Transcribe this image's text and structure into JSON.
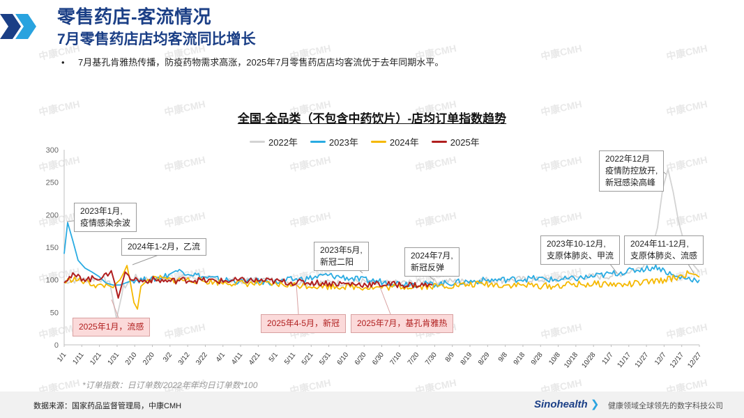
{
  "header": {
    "title": "零售药店-客流情况",
    "subtitle": "7月零售药店店均客流同比增长",
    "bullet": "7月基孔肯雅热传播，防疫药物需求高涨，2025年7月零售药店店均客流优于去年同期水平。",
    "bullet_marker": "•"
  },
  "watermark_text": "中康CMH",
  "colors": {
    "brand": "#1b3f86",
    "chev1": "#1b3f86",
    "chev2": "#29a3df",
    "y2022": "#d3d3d3",
    "y2023": "#29abe2",
    "y2024": "#f5b800",
    "y2025": "#b01e1e"
  },
  "chart_data": {
    "type": "line",
    "title": "全国-全品类（不包含中药饮片）-店均订单指数趋势",
    "ylim": [
      0,
      300
    ],
    "yticks": [
      "0",
      "50",
      "100",
      "150",
      "200",
      "250",
      "300"
    ],
    "xticks": [
      "1/1",
      "1/11",
      "1/21",
      "1/31",
      "2/10",
      "2/20",
      "3/2",
      "3/12",
      "3/22",
      "4/1",
      "4/11",
      "4/21",
      "5/1",
      "5/11",
      "5/21",
      "5/31",
      "6/10",
      "6/20",
      "6/30",
      "7/10",
      "7/20",
      "7/30",
      "8/9",
      "8/19",
      "8/29",
      "9/8",
      "9/18",
      "9/28",
      "10/8",
      "10/18",
      "10/28",
      "11/7",
      "11/17",
      "11/27",
      "12/7",
      "12/17",
      "12/27"
    ],
    "x_day_range": [
      0,
      364
    ],
    "series": [
      {
        "name": "2022年",
        "key": "y2022",
        "points": [
          [
            0,
            98
          ],
          [
            10,
            100
          ],
          [
            20,
            102
          ],
          [
            26,
            98
          ],
          [
            30,
            40
          ],
          [
            34,
            88
          ],
          [
            40,
            104
          ],
          [
            50,
            100
          ],
          [
            60,
            102
          ],
          [
            70,
            104
          ],
          [
            80,
            102
          ],
          [
            90,
            100
          ],
          [
            100,
            98
          ],
          [
            110,
            100
          ],
          [
            120,
            100
          ],
          [
            130,
            96
          ],
          [
            140,
            95
          ],
          [
            150,
            96
          ],
          [
            160,
            95
          ],
          [
            170,
            98
          ],
          [
            180,
            94
          ],
          [
            190,
            95
          ],
          [
            200,
            96
          ],
          [
            210,
            97
          ],
          [
            220,
            98
          ],
          [
            230,
            97
          ],
          [
            240,
            100
          ],
          [
            250,
            99
          ],
          [
            260,
            101
          ],
          [
            270,
            100
          ],
          [
            280,
            100
          ],
          [
            290,
            103
          ],
          [
            300,
            105
          ],
          [
            310,
            105
          ],
          [
            320,
            110
          ],
          [
            330,
            118
          ],
          [
            336,
            140
          ],
          [
            340,
            180
          ],
          [
            343,
            240
          ],
          [
            346,
            270
          ],
          [
            349,
            235
          ],
          [
            352,
            190
          ],
          [
            356,
            150
          ],
          [
            360,
            125
          ],
          [
            364,
            112
          ]
        ]
      },
      {
        "name": "2023年",
        "key": "y2023",
        "points": [
          [
            0,
            140
          ],
          [
            2,
            188
          ],
          [
            5,
            160
          ],
          [
            8,
            130
          ],
          [
            12,
            118
          ],
          [
            16,
            112
          ],
          [
            20,
            105
          ],
          [
            24,
            95
          ],
          [
            28,
            92
          ],
          [
            32,
            92
          ],
          [
            36,
            96
          ],
          [
            40,
            100
          ],
          [
            50,
            100
          ],
          [
            60,
            108
          ],
          [
            64,
            114
          ],
          [
            70,
            112
          ],
          [
            80,
            104
          ],
          [
            90,
            100
          ],
          [
            100,
            98
          ],
          [
            110,
            98
          ],
          [
            120,
            96
          ],
          [
            130,
            100
          ],
          [
            140,
            102
          ],
          [
            150,
            107
          ],
          [
            160,
            104
          ],
          [
            170,
            100
          ],
          [
            180,
            98
          ],
          [
            190,
            95
          ],
          [
            200,
            94
          ],
          [
            210,
            93
          ],
          [
            220,
            95
          ],
          [
            230,
            97
          ],
          [
            240,
            99
          ],
          [
            250,
            100
          ],
          [
            260,
            101
          ],
          [
            270,
            102
          ],
          [
            280,
            100
          ],
          [
            290,
            101
          ],
          [
            300,
            104
          ],
          [
            310,
            108
          ],
          [
            320,
            112
          ],
          [
            330,
            116
          ],
          [
            340,
            120
          ],
          [
            350,
            105
          ],
          [
            358,
            102
          ],
          [
            364,
            100
          ]
        ]
      },
      {
        "name": "2024年",
        "key": "y2024",
        "points": [
          [
            0,
            96
          ],
          [
            5,
            102
          ],
          [
            10,
            98
          ],
          [
            15,
            95
          ],
          [
            20,
            90
          ],
          [
            25,
            92
          ],
          [
            28,
            88
          ],
          [
            30,
            95
          ],
          [
            32,
            100
          ],
          [
            34,
            110
          ],
          [
            36,
            122
          ],
          [
            38,
            95
          ],
          [
            40,
            65
          ],
          [
            42,
            55
          ],
          [
            44,
            90
          ],
          [
            48,
            100
          ],
          [
            55,
            102
          ],
          [
            60,
            100
          ],
          [
            70,
            100
          ],
          [
            80,
            98
          ],
          [
            90,
            96
          ],
          [
            100,
            95
          ],
          [
            110,
            94
          ],
          [
            120,
            93
          ],
          [
            130,
            92
          ],
          [
            140,
            91
          ],
          [
            150,
            90
          ],
          [
            160,
            90
          ],
          [
            170,
            89
          ],
          [
            180,
            88
          ],
          [
            190,
            89
          ],
          [
            200,
            90
          ],
          [
            210,
            90
          ],
          [
            220,
            91
          ],
          [
            230,
            92
          ],
          [
            240,
            94
          ],
          [
            250,
            92
          ],
          [
            260,
            92
          ],
          [
            270,
            91
          ],
          [
            280,
            90
          ],
          [
            290,
            93
          ],
          [
            300,
            93
          ],
          [
            310,
            94
          ],
          [
            320,
            92
          ],
          [
            330,
            95
          ],
          [
            340,
            98
          ],
          [
            350,
            103
          ],
          [
            358,
            110
          ],
          [
            362,
            108
          ],
          [
            364,
            104
          ]
        ]
      },
      {
        "name": "2025年",
        "key": "y2025",
        "points": [
          [
            0,
            100
          ],
          [
            5,
            106
          ],
          [
            10,
            103
          ],
          [
            15,
            101
          ],
          [
            20,
            104
          ],
          [
            25,
            106
          ],
          [
            27,
            114
          ],
          [
            29,
            95
          ],
          [
            31,
            72
          ],
          [
            33,
            92
          ],
          [
            35,
            112
          ],
          [
            38,
            104
          ],
          [
            44,
            98
          ],
          [
            50,
            100
          ],
          [
            60,
            98
          ],
          [
            70,
            100
          ],
          [
            80,
            99
          ],
          [
            90,
            98
          ],
          [
            100,
            99
          ],
          [
            110,
            99
          ],
          [
            120,
            98
          ],
          [
            130,
            96
          ],
          [
            140,
            96
          ],
          [
            150,
            95
          ],
          [
            160,
            94
          ],
          [
            170,
            93
          ],
          [
            180,
            93
          ],
          [
            190,
            93
          ],
          [
            200,
            92
          ],
          [
            205,
            92
          ],
          [
            211,
            92
          ]
        ]
      }
    ],
    "annotations": [
      {
        "lines": [
          "2023年1月,",
          "疫情感染余波"
        ],
        "style": "box"
      },
      {
        "lines": [
          "2024年1-2月，乙流"
        ],
        "style": "box"
      },
      {
        "lines": [
          "2023年5月,",
          "新冠二阳"
        ],
        "style": "box"
      },
      {
        "lines": [
          "2024年7月,",
          "新冠反弹"
        ],
        "style": "box"
      },
      {
        "lines": [
          "2023年10-12月,",
          "支原体肺炎、甲流"
        ],
        "style": "box"
      },
      {
        "lines": [
          "2024年11-12月,",
          "支原体肺炎、流感"
        ],
        "style": "box"
      },
      {
        "lines": [
          "2022年12月",
          "疫情防控放开,",
          "新冠感染高峰"
        ],
        "style": "box"
      },
      {
        "lines": [
          "2025年1月，流感"
        ],
        "style": "red"
      },
      {
        "lines": [
          "2025年4-5月，新冠"
        ],
        "style": "red"
      },
      {
        "lines": [
          "2025年7月，基孔肯雅热"
        ],
        "style": "red"
      }
    ],
    "legend_position": "top-center"
  },
  "footnote": "*订单指数：日订单数/2022年年均日订单数*100",
  "footer": {
    "source": "数据来源：国家药品监督管理局，中康CMH",
    "logo": "Sinohealth",
    "slogan": "健康领域全球领先的数字科技公司"
  }
}
